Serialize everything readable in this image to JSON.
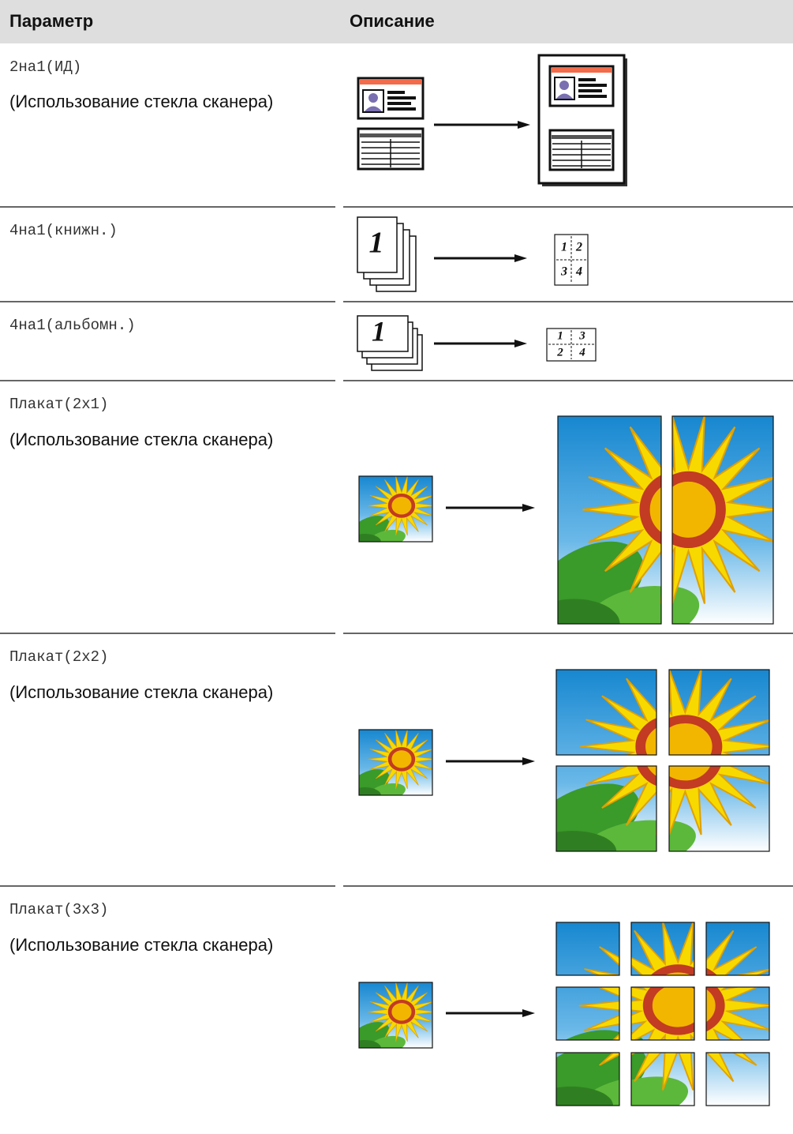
{
  "header": {
    "col1": "Параметр",
    "col2": "Описание"
  },
  "rows": [
    {
      "option": "2на1(ИД)",
      "note": "(Использование стекла сканера)"
    },
    {
      "option": "4на1(книжн.)",
      "figure": {
        "page": "1",
        "tiles": [
          "1",
          "2",
          "3",
          "4"
        ]
      }
    },
    {
      "option": "4на1(альбомн.)",
      "figure": {
        "page": "1",
        "tiles": [
          "1",
          "3",
          "2",
          "4"
        ]
      }
    },
    {
      "option": "Плакат(2x1)",
      "note": "(Использование стекла сканера)"
    },
    {
      "option": "Плакат(2x2)",
      "note": "(Использование стекла сканера)"
    },
    {
      "option": "Плакат(3x3)",
      "note": "(Использование стекла сканера)"
    }
  ]
}
